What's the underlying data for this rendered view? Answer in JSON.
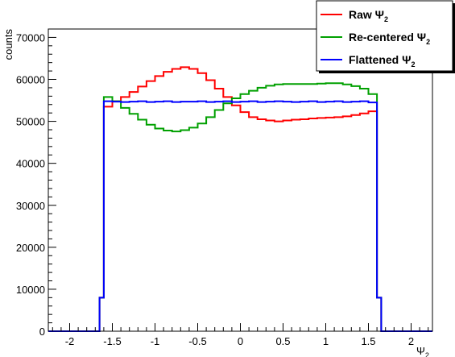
{
  "chart_data": {
    "type": "line",
    "style": "step histogram",
    "xlabel_symbol": "Ψ",
    "xlabel_subscript": "2",
    "ylabel": "counts",
    "xlim": [
      -2.25,
      2.25
    ],
    "ylim": [
      0,
      72000
    ],
    "x_ticks": [
      -2,
      -1.5,
      -1,
      -0.5,
      0,
      0.5,
      1,
      1.5,
      2
    ],
    "x_tick_labels": [
      "-2",
      "-1.5",
      "-1",
      "-0.5",
      "0",
      "0.5",
      "1",
      "1.5",
      "2"
    ],
    "y_ticks": [
      0,
      10000,
      20000,
      30000,
      40000,
      50000,
      60000,
      70000
    ],
    "y_tick_labels": [
      "0",
      "10000",
      "20000",
      "30000",
      "40000",
      "50000",
      "60000",
      "70000"
    ],
    "grid": false,
    "legend_position": "top-right",
    "bin_edges_range": [
      -2.25,
      2.25
    ],
    "bin_count": 90,
    "nonzero_range": [
      -1.6,
      1.6
    ],
    "edge_bin_value": 8000,
    "x": [
      -1.55,
      -1.45,
      -1.35,
      -1.25,
      -1.15,
      -1.05,
      -0.95,
      -0.85,
      -0.75,
      -0.65,
      -0.55,
      -0.45,
      -0.35,
      -0.25,
      -0.15,
      -0.05,
      0.05,
      0.15,
      0.25,
      0.35,
      0.45,
      0.55,
      0.65,
      0.75,
      0.85,
      0.95,
      1.05,
      1.15,
      1.25,
      1.35,
      1.45,
      1.55
    ],
    "series": [
      {
        "name_main": "Raw Ψ",
        "name_sub": "2",
        "color": "#ff0000",
        "values": [
          53500,
          54800,
          55800,
          57000,
          58300,
          59600,
          60800,
          61800,
          62500,
          62900,
          62500,
          61500,
          59800,
          57800,
          55800,
          53800,
          52200,
          51000,
          50500,
          50200,
          50000,
          50200,
          50400,
          50500,
          50700,
          50800,
          50900,
          51000,
          51200,
          51500,
          51900,
          52400
        ]
      },
      {
        "name_main": "Re-centered Ψ",
        "name_sub": "2",
        "color": "#00a000",
        "values": [
          55800,
          54800,
          53200,
          51800,
          50400,
          49200,
          48300,
          47800,
          47600,
          47900,
          48500,
          49500,
          51000,
          52700,
          54300,
          55500,
          56500,
          57300,
          58000,
          58500,
          58800,
          58900,
          58900,
          58900,
          58900,
          59000,
          59100,
          59100,
          58800,
          58400,
          57800,
          56500
        ]
      },
      {
        "name_main": "Flattened Ψ",
        "name_sub": "2",
        "color": "#0000ff",
        "values": [
          54800,
          54700,
          54600,
          54700,
          54800,
          54600,
          54700,
          54800,
          54600,
          54700,
          54700,
          54800,
          54600,
          54700,
          54800,
          54600,
          54700,
          54800,
          54600,
          54700,
          54800,
          54700,
          54600,
          54700,
          54800,
          54600,
          54700,
          54800,
          54600,
          54700,
          54800,
          54500
        ]
      }
    ]
  }
}
